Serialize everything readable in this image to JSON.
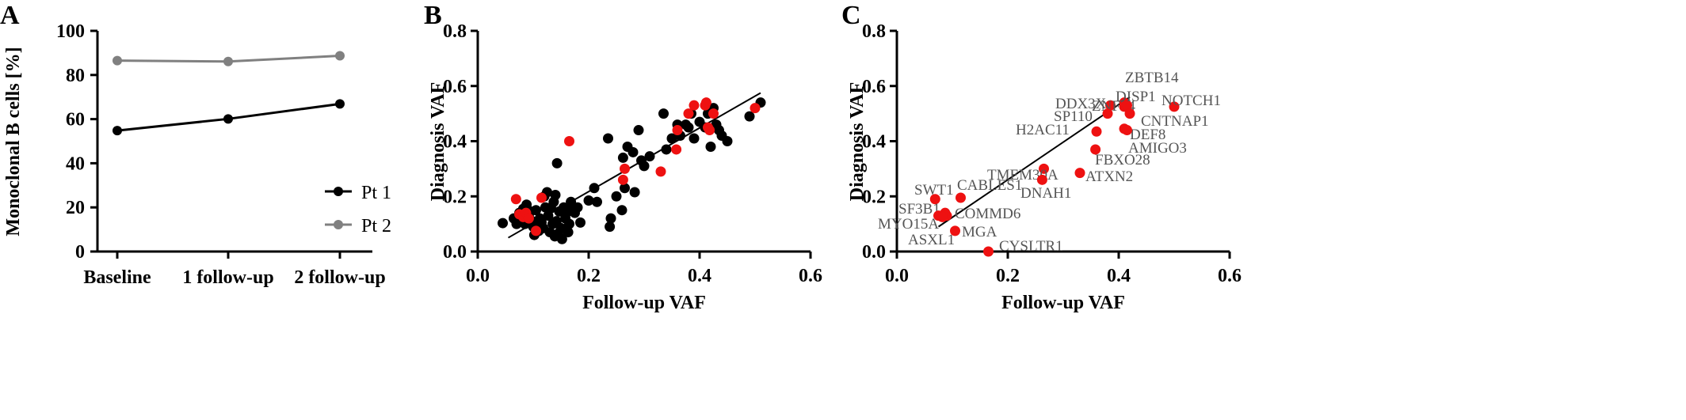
{
  "colors": {
    "black": "#000000",
    "gray": "#808080",
    "red": "#ee1111",
    "label_gray": "#555555"
  },
  "chart_data": [
    {
      "panel": "A",
      "type": "line",
      "ylabel": "Monoclonal B cells  [%]",
      "categories": [
        "Baseline",
        "1 follow-up",
        "2 follow-up"
      ],
      "ylim": [
        0,
        100
      ],
      "yticks": [
        "0",
        "20",
        "40",
        "60",
        "80",
        "100"
      ],
      "legend_position": "bottom-right",
      "series": [
        {
          "name": "Pt 1",
          "color": "#000000",
          "values": [
            54.8,
            60.1,
            66.9
          ]
        },
        {
          "name": "Pt 2",
          "color": "#808080",
          "values": [
            86.5,
            86.1,
            88.7
          ]
        }
      ]
    },
    {
      "panel": "B",
      "type": "scatter",
      "xlabel": "Follow-up VAF",
      "ylabel": "Diagnosis VAF",
      "xlim": [
        0,
        0.6
      ],
      "ylim": [
        0,
        0.8
      ],
      "xticks": [
        "0.0",
        "0.2",
        "0.4",
        "0.6"
      ],
      "yticks": [
        "0.0",
        "0.2",
        "0.4",
        "0.6",
        "0.8"
      ],
      "regression_line": [
        [
          0.055,
          0.05
        ],
        [
          0.51,
          0.575
        ]
      ],
      "series": [
        {
          "color": "#000000",
          "points": [
            [
              0.045,
              0.103
            ],
            [
              0.065,
              0.12
            ],
            [
              0.07,
              0.1
            ],
            [
              0.075,
              0.14
            ],
            [
              0.078,
              0.115
            ],
            [
              0.082,
              0.155
            ],
            [
              0.085,
              0.1
            ],
            [
              0.088,
              0.17
            ],
            [
              0.09,
              0.13
            ],
            [
              0.092,
              0.125
            ],
            [
              0.095,
              0.145
            ],
            [
              0.098,
              0.11
            ],
            [
              0.1,
              0.09
            ],
            [
              0.102,
              0.06
            ],
            [
              0.105,
              0.15
            ],
            [
              0.108,
              0.1
            ],
            [
              0.11,
              0.075
            ],
            [
              0.112,
              0.12
            ],
            [
              0.115,
              0.105
            ],
            [
              0.118,
              0.085
            ],
            [
              0.12,
              0.2
            ],
            [
              0.122,
              0.16
            ],
            [
              0.125,
              0.215
            ],
            [
              0.127,
              0.13
            ],
            [
              0.13,
              0.07
            ],
            [
              0.132,
              0.16
            ],
            [
              0.135,
              0.1
            ],
            [
              0.137,
              0.18
            ],
            [
              0.139,
              0.055
            ],
            [
              0.14,
              0.205
            ],
            [
              0.142,
              0.11
            ],
            [
              0.143,
              0.32
            ],
            [
              0.145,
              0.065
            ],
            [
              0.147,
              0.145
            ],
            [
              0.15,
              0.085
            ],
            [
              0.152,
              0.045
            ],
            [
              0.155,
              0.16
            ],
            [
              0.158,
              0.12
            ],
            [
              0.16,
              0.14
            ],
            [
              0.163,
              0.07
            ],
            [
              0.165,
              0.1
            ],
            [
              0.168,
              0.18
            ],
            [
              0.17,
              0.155
            ],
            [
              0.175,
              0.14
            ],
            [
              0.18,
              0.16
            ],
            [
              0.185,
              0.105
            ],
            [
              0.2,
              0.185
            ],
            [
              0.21,
              0.23
            ],
            [
              0.215,
              0.18
            ],
            [
              0.235,
              0.41
            ],
            [
              0.238,
              0.09
            ],
            [
              0.24,
              0.12
            ],
            [
              0.25,
              0.2
            ],
            [
              0.26,
              0.15
            ],
            [
              0.262,
              0.34
            ],
            [
              0.265,
              0.23
            ],
            [
              0.27,
              0.38
            ],
            [
              0.28,
              0.36
            ],
            [
              0.283,
              0.215
            ],
            [
              0.29,
              0.44
            ],
            [
              0.295,
              0.33
            ],
            [
              0.3,
              0.31
            ],
            [
              0.31,
              0.345
            ],
            [
              0.335,
              0.5
            ],
            [
              0.34,
              0.37
            ],
            [
              0.35,
              0.41
            ],
            [
              0.36,
              0.46
            ],
            [
              0.365,
              0.42
            ],
            [
              0.375,
              0.46
            ],
            [
              0.38,
              0.45
            ],
            [
              0.385,
              0.5
            ],
            [
              0.39,
              0.41
            ],
            [
              0.4,
              0.47
            ],
            [
              0.41,
              0.45
            ],
            [
              0.415,
              0.5
            ],
            [
              0.42,
              0.38
            ],
            [
              0.425,
              0.52
            ],
            [
              0.43,
              0.46
            ],
            [
              0.435,
              0.44
            ],
            [
              0.44,
              0.42
            ],
            [
              0.45,
              0.4
            ],
            [
              0.49,
              0.49
            ],
            [
              0.51,
              0.54
            ]
          ]
        },
        {
          "color": "#ee1111",
          "points": [
            [
              0.069,
              0.19
            ],
            [
              0.075,
              0.135
            ],
            [
              0.082,
              0.125
            ],
            [
              0.087,
              0.14
            ],
            [
              0.092,
              0.12
            ],
            [
              0.105,
              0.075
            ],
            [
              0.115,
              0.195
            ],
            [
              0.165,
              0.4
            ],
            [
              0.262,
              0.26
            ],
            [
              0.265,
              0.3
            ],
            [
              0.33,
              0.29
            ],
            [
              0.358,
              0.37
            ],
            [
              0.36,
              0.44
            ],
            [
              0.38,
              0.5
            ],
            [
              0.39,
              0.53
            ],
            [
              0.41,
              0.53
            ],
            [
              0.412,
              0.54
            ],
            [
              0.415,
              0.45
            ],
            [
              0.418,
              0.44
            ],
            [
              0.425,
              0.5
            ],
            [
              0.5,
              0.52
            ]
          ]
        }
      ]
    },
    {
      "panel": "C",
      "type": "scatter",
      "xlabel": "Follow-up VAF",
      "ylabel": "Diagnosis VAF",
      "xlim": [
        0,
        0.6
      ],
      "ylim": [
        0,
        0.8
      ],
      "xticks": [
        "0.0",
        "0.2",
        "0.4",
        "0.6"
      ],
      "yticks": [
        "0.0",
        "0.2",
        "0.4",
        "0.6",
        "0.8"
      ],
      "regression_line": [
        [
          0.075,
          0.09
        ],
        [
          0.42,
          0.56
        ]
      ],
      "points": [
        {
          "label": "ZBTB14",
          "x": 0.41,
          "y": 0.54
        },
        {
          "label": "ZNF24",
          "x": 0.385,
          "y": 0.53
        },
        {
          "label": "DDX3X",
          "x": 0.41,
          "y": 0.525
        },
        {
          "label": "DISP1",
          "x": 0.415,
          "y": 0.53
        },
        {
          "label": "NOTCH1",
          "x": 0.5,
          "y": 0.525
        },
        {
          "label": "SP110",
          "x": 0.38,
          "y": 0.5
        },
        {
          "label": "CNTNAP1",
          "x": 0.42,
          "y": 0.5
        },
        {
          "label": "H2AC11",
          "x": 0.36,
          "y": 0.435
        },
        {
          "label": "DEF8",
          "x": 0.41,
          "y": 0.445
        },
        {
          "label": "AMIGO3",
          "x": 0.415,
          "y": 0.44
        },
        {
          "label": "FBXO28",
          "x": 0.358,
          "y": 0.37
        },
        {
          "label": "TMEM30A",
          "x": 0.265,
          "y": 0.3
        },
        {
          "label": "ATXN2",
          "x": 0.33,
          "y": 0.285
        },
        {
          "label": "DNAH1",
          "x": 0.262,
          "y": 0.26
        },
        {
          "label": "CABLES1",
          "x": 0.115,
          "y": 0.195
        },
        {
          "label": "SWT1",
          "x": 0.069,
          "y": 0.19
        },
        {
          "label": "SF3B1",
          "x": 0.087,
          "y": 0.14
        },
        {
          "label": "COMMD6",
          "x": 0.09,
          "y": 0.13
        },
        {
          "label": "MYO15A",
          "x": 0.075,
          "y": 0.13
        },
        {
          "label": "ASXL1",
          "x": 0.082,
          "y": 0.125
        },
        {
          "label": "MGA",
          "x": 0.105,
          "y": 0.075
        },
        {
          "label": "CYSLTR1",
          "x": 0.165,
          "y": 0.0
        }
      ]
    }
  ]
}
